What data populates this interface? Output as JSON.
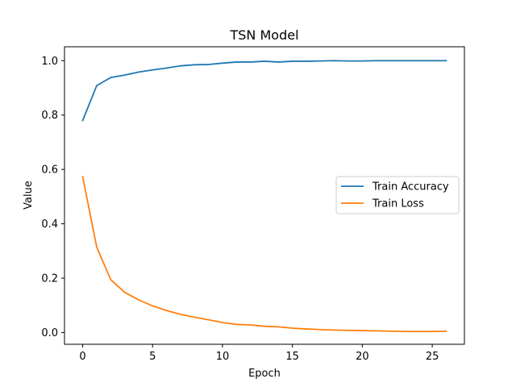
{
  "chart_data": {
    "type": "line",
    "title": "TSN Model",
    "xlabel": "Epoch",
    "ylabel": "Value",
    "xlim": [
      -1.3,
      27.3
    ],
    "ylim": [
      -0.0432,
      1.0512
    ],
    "xticks": [
      0,
      5,
      10,
      15,
      20,
      25
    ],
    "yticks": [
      0.0,
      0.2,
      0.4,
      0.6,
      0.8,
      1.0
    ],
    "xtick_labels": [
      "0",
      "5",
      "10",
      "15",
      "20",
      "25"
    ],
    "ytick_labels": [
      "0.0",
      "0.2",
      "0.4",
      "0.6",
      "0.8",
      "1.0"
    ],
    "grid": false,
    "legend_position": "center-right",
    "x": [
      0,
      1,
      2,
      3,
      4,
      5,
      6,
      7,
      8,
      9,
      10,
      11,
      12,
      13,
      14,
      15,
      16,
      17,
      18,
      19,
      20,
      21,
      22,
      23,
      24,
      25,
      26
    ],
    "series": [
      {
        "name": "Train Accuracy",
        "color": "#1f77b4",
        "values": [
          0.78,
          0.908,
          0.938,
          0.947,
          0.958,
          0.966,
          0.973,
          0.981,
          0.985,
          0.986,
          0.991,
          0.995,
          0.995,
          0.998,
          0.995,
          0.998,
          0.998,
          0.999,
          1.0,
          0.999,
          0.999,
          1.0,
          1.0,
          1.0,
          1.0,
          1.0,
          1.0
        ]
      },
      {
        "name": "Train Loss",
        "color": "#ff7f0e",
        "values": [
          0.573,
          0.315,
          0.195,
          0.148,
          0.12,
          0.098,
          0.081,
          0.067,
          0.056,
          0.047,
          0.037,
          0.03,
          0.028,
          0.023,
          0.021,
          0.016,
          0.013,
          0.011,
          0.009,
          0.008,
          0.007,
          0.006,
          0.005,
          0.004,
          0.004,
          0.004,
          0.005
        ]
      }
    ]
  }
}
